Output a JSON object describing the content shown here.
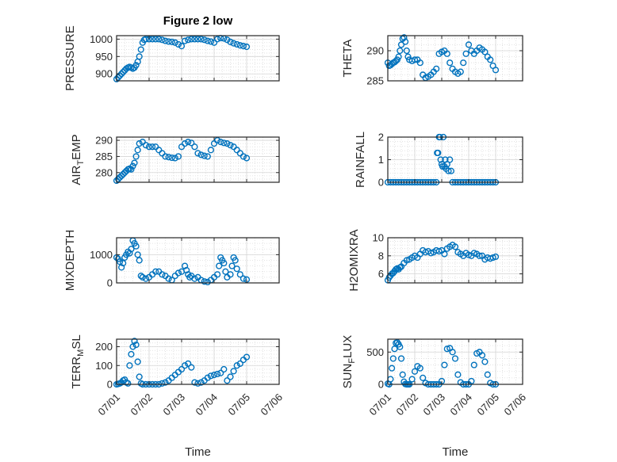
{
  "figure_title": "Figure 2 low",
  "chart_data": [
    {
      "type": "scatter",
      "ylabel": "PRESSURE",
      "xlabel": "",
      "title": "Figure 2 low",
      "ylim": [
        880,
        1010
      ],
      "yticks": [
        900,
        950,
        1000
      ],
      "xlim": [
        0,
        5
      ],
      "grid": true,
      "x": [
        0.0,
        0.05,
        0.1,
        0.15,
        0.2,
        0.25,
        0.3,
        0.35,
        0.4,
        0.45,
        0.5,
        0.55,
        0.6,
        0.65,
        0.7,
        0.75,
        0.8,
        0.85,
        0.9,
        1.0,
        1.1,
        1.2,
        1.3,
        1.4,
        1.5,
        1.6,
        1.7,
        1.8,
        1.9,
        2.0,
        2.1,
        2.2,
        2.3,
        2.4,
        2.5,
        2.6,
        2.7,
        2.8,
        2.9,
        3.0,
        3.1,
        3.2,
        3.3,
        3.4,
        3.5,
        3.6,
        3.7,
        3.8,
        3.9,
        4.0
      ],
      "y": [
        885,
        890,
        895,
        900,
        905,
        910,
        915,
        918,
        920,
        918,
        915,
        918,
        925,
        935,
        950,
        970,
        990,
        998,
        1000,
        1000,
        1000,
        1000,
        1000,
        998,
        995,
        993,
        992,
        990,
        985,
        980,
        995,
        998,
        1000,
        1000,
        1000,
        1000,
        998,
        995,
        993,
        990,
        1000,
        1003,
        1002,
        998,
        992,
        988,
        985,
        982,
        980,
        978
      ]
    },
    {
      "type": "scatter",
      "ylabel": "THETA",
      "xlabel": "",
      "ylim": [
        285,
        292.5
      ],
      "yticks": [
        285,
        290
      ],
      "xlim": [
        0,
        5
      ],
      "grid": true,
      "x": [
        0.0,
        0.05,
        0.1,
        0.15,
        0.2,
        0.25,
        0.3,
        0.35,
        0.4,
        0.45,
        0.5,
        0.55,
        0.6,
        0.65,
        0.7,
        0.75,
        0.8,
        0.9,
        1.0,
        1.1,
        1.2,
        1.3,
        1.4,
        1.5,
        1.6,
        1.7,
        1.8,
        1.9,
        2.0,
        2.1,
        2.2,
        2.3,
        2.4,
        2.5,
        2.6,
        2.7,
        2.8,
        2.9,
        3.0,
        3.1,
        3.2,
        3.3,
        3.4,
        3.5,
        3.6,
        3.7,
        3.8,
        3.9,
        4.0
      ],
      "y": [
        288,
        287.5,
        287.6,
        287.8,
        288,
        288.1,
        288.3,
        288.5,
        289,
        290,
        291,
        292,
        292.2,
        291.5,
        290,
        289,
        288.5,
        288.3,
        288.5,
        288.5,
        288,
        286,
        285.5,
        285.7,
        286,
        286.5,
        287,
        289.5,
        289.8,
        290,
        289.5,
        288,
        287,
        286.5,
        286.2,
        286.5,
        288,
        289.5,
        291,
        290,
        289.5,
        290,
        290.5,
        290.2,
        289.8,
        289,
        288.5,
        287.5,
        286.8
      ]
    },
    {
      "type": "scatter",
      "ylabel": "AIR_TEMP",
      "xlabel": "",
      "ylim": [
        277,
        291
      ],
      "yticks": [
        280,
        285,
        290
      ],
      "xlim": [
        0,
        5
      ],
      "grid": true,
      "x": [
        0.0,
        0.05,
        0.1,
        0.15,
        0.2,
        0.25,
        0.3,
        0.35,
        0.4,
        0.45,
        0.5,
        0.55,
        0.6,
        0.65,
        0.7,
        0.8,
        0.9,
        1.0,
        1.1,
        1.2,
        1.3,
        1.4,
        1.5,
        1.6,
        1.7,
        1.8,
        1.9,
        2.0,
        2.1,
        2.2,
        2.3,
        2.4,
        2.5,
        2.6,
        2.7,
        2.8,
        2.9,
        3.0,
        3.1,
        3.2,
        3.3,
        3.4,
        3.5,
        3.6,
        3.7,
        3.8,
        3.9,
        4.0
      ],
      "y": [
        277.5,
        278,
        278.5,
        279,
        279.5,
        280,
        280.5,
        281,
        281.2,
        281,
        282,
        283,
        285,
        287,
        289,
        289.5,
        288.5,
        288,
        288,
        288,
        287,
        286,
        285,
        284.8,
        284.6,
        284.5,
        285,
        288,
        289,
        289.5,
        289.2,
        288,
        286,
        285.5,
        285.2,
        285,
        287,
        289,
        290,
        289.5,
        289.2,
        289,
        288.5,
        288,
        287,
        286,
        285,
        284.5
      ]
    },
    {
      "type": "scatter",
      "ylabel": "RAINFALL",
      "xlabel": "",
      "ylim": [
        0,
        2
      ],
      "yticks": [
        0,
        1,
        2
      ],
      "xlim": [
        0,
        5
      ],
      "grid": true,
      "x": [
        0.0,
        0.1,
        0.2,
        0.3,
        0.4,
        0.5,
        0.6,
        0.7,
        0.8,
        0.9,
        1.0,
        1.1,
        1.2,
        1.3,
        1.4,
        1.5,
        1.6,
        1.7,
        1.8,
        1.83,
        1.86,
        1.9,
        1.93,
        1.96,
        2.0,
        2.03,
        2.06,
        2.1,
        2.13,
        2.16,
        2.2,
        2.25,
        2.3,
        2.35,
        2.4,
        2.5,
        2.6,
        2.7,
        2.8,
        2.9,
        3.0,
        3.1,
        3.2,
        3.3,
        3.4,
        3.5,
        3.6,
        3.7,
        3.8,
        3.9,
        4.0
      ],
      "y": [
        0,
        0,
        0,
        0,
        0,
        0,
        0,
        0,
        0,
        0,
        0,
        0,
        0,
        0,
        0,
        0,
        0,
        0,
        0,
        1.3,
        1.3,
        2.0,
        2.0,
        1.0,
        0.8,
        0.7,
        2.0,
        0.7,
        1.0,
        0.6,
        0.8,
        0.5,
        1.0,
        0.5,
        0,
        0,
        0,
        0,
        0,
        0,
        0,
        0,
        0,
        0,
        0,
        0,
        0,
        0,
        0,
        0,
        0
      ]
    },
    {
      "type": "scatter",
      "ylabel": "MIXDEPTH",
      "xlabel": "",
      "ylim": [
        0,
        1600
      ],
      "yticks": [
        0,
        1000
      ],
      "xlim": [
        0,
        5
      ],
      "grid": true,
      "x": [
        0.0,
        0.05,
        0.1,
        0.15,
        0.2,
        0.25,
        0.3,
        0.35,
        0.4,
        0.45,
        0.5,
        0.55,
        0.6,
        0.65,
        0.7,
        0.75,
        0.8,
        0.9,
        1.0,
        1.1,
        1.2,
        1.3,
        1.4,
        1.5,
        1.6,
        1.7,
        1.8,
        1.9,
        2.0,
        2.1,
        2.15,
        2.2,
        2.25,
        2.3,
        2.4,
        2.5,
        2.6,
        2.7,
        2.8,
        2.9,
        3.0,
        3.1,
        3.15,
        3.2,
        3.25,
        3.3,
        3.35,
        3.4,
        3.5,
        3.55,
        3.6,
        3.65,
        3.7,
        3.8,
        3.9,
        4.0
      ],
      "y": [
        900,
        850,
        750,
        550,
        700,
        900,
        1000,
        1100,
        1050,
        1200,
        1500,
        1400,
        1300,
        1000,
        800,
        250,
        200,
        150,
        200,
        300,
        400,
        400,
        300,
        250,
        150,
        100,
        250,
        350,
        400,
        600,
        450,
        300,
        200,
        250,
        150,
        200,
        100,
        50,
        30,
        100,
        200,
        300,
        600,
        900,
        800,
        700,
        400,
        200,
        300,
        600,
        900,
        800,
        500,
        300,
        150,
        120
      ]
    },
    {
      "type": "scatter",
      "ylabel": "H2OMIXRA",
      "xlabel": "",
      "ylim": [
        5,
        10
      ],
      "yticks": [
        6,
        8,
        10
      ],
      "xlim": [
        0,
        5
      ],
      "grid": true,
      "x": [
        0.0,
        0.05,
        0.1,
        0.15,
        0.2,
        0.25,
        0.3,
        0.35,
        0.4,
        0.45,
        0.5,
        0.6,
        0.7,
        0.8,
        0.9,
        1.0,
        1.1,
        1.2,
        1.3,
        1.4,
        1.5,
        1.6,
        1.7,
        1.8,
        1.9,
        2.0,
        2.1,
        2.2,
        2.3,
        2.4,
        2.5,
        2.6,
        2.7,
        2.8,
        2.9,
        3.0,
        3.1,
        3.2,
        3.3,
        3.4,
        3.5,
        3.6,
        3.7,
        3.8,
        3.9,
        4.0
      ],
      "y": [
        5.3,
        5.6,
        5.8,
        6.0,
        6.1,
        6.3,
        6.5,
        6.6,
        6.5,
        6.7,
        6.8,
        7.2,
        7.5,
        7.6,
        7.8,
        8.0,
        7.8,
        8.2,
        8.6,
        8.4,
        8.5,
        8.3,
        8.4,
        8.6,
        8.5,
        8.6,
        8.2,
        8.8,
        9.0,
        9.2,
        9.0,
        8.4,
        8.2,
        8.0,
        8.3,
        8.1,
        8.0,
        8.3,
        8.2,
        8.0,
        8.0,
        7.6,
        7.8,
        7.7,
        7.8,
        7.9
      ]
    },
    {
      "type": "scatter",
      "ylabel": "TERR_MSL",
      "xlabel": "Time",
      "ylim": [
        0,
        240
      ],
      "yticks": [
        0,
        100,
        200
      ],
      "xlim": [
        0,
        5
      ],
      "xticks": [
        0,
        1,
        2,
        3,
        4,
        5
      ],
      "xticklabels": [
        "07/01",
        "07/02",
        "07/03",
        "07/04",
        "07/05",
        "07/06"
      ],
      "grid": true,
      "x": [
        0.0,
        0.05,
        0.1,
        0.15,
        0.2,
        0.25,
        0.3,
        0.35,
        0.4,
        0.45,
        0.5,
        0.55,
        0.6,
        0.65,
        0.7,
        0.75,
        0.8,
        0.9,
        1.0,
        1.1,
        1.2,
        1.3,
        1.4,
        1.5,
        1.6,
        1.7,
        1.8,
        1.9,
        2.0,
        2.1,
        2.2,
        2.3,
        2.4,
        2.5,
        2.6,
        2.7,
        2.8,
        2.9,
        3.0,
        3.1,
        3.2,
        3.3,
        3.4,
        3.5,
        3.6,
        3.7,
        3.8,
        3.9,
        4.0
      ],
      "y": [
        0,
        2,
        5,
        10,
        20,
        25,
        10,
        5,
        100,
        160,
        200,
        230,
        210,
        120,
        40,
        5,
        0,
        0,
        0,
        0,
        0,
        0,
        5,
        10,
        20,
        35,
        50,
        65,
        80,
        100,
        110,
        90,
        10,
        5,
        10,
        20,
        35,
        45,
        50,
        55,
        60,
        80,
        20,
        40,
        70,
        100,
        110,
        130,
        145
      ]
    },
    {
      "type": "scatter",
      "ylabel": "SUN_FLUX",
      "xlabel": "Time",
      "ylim": [
        0,
        700
      ],
      "yticks": [
        0,
        500
      ],
      "xlim": [
        0,
        5
      ],
      "xticks": [
        0,
        1,
        2,
        3,
        4,
        5
      ],
      "xticklabels": [
        "07/01",
        "07/02",
        "07/03",
        "07/04",
        "07/05",
        "07/06"
      ],
      "grid": true,
      "x": [
        0.0,
        0.05,
        0.1,
        0.15,
        0.2,
        0.25,
        0.3,
        0.35,
        0.4,
        0.45,
        0.5,
        0.55,
        0.6,
        0.65,
        0.7,
        0.75,
        0.8,
        0.9,
        1.0,
        1.1,
        1.2,
        1.3,
        1.4,
        1.5,
        1.6,
        1.7,
        1.8,
        1.9,
        2.0,
        2.1,
        2.2,
        2.3,
        2.4,
        2.5,
        2.6,
        2.7,
        2.8,
        2.9,
        3.0,
        3.1,
        3.2,
        3.3,
        3.4,
        3.5,
        3.6,
        3.7,
        3.8,
        3.9,
        4.0
      ],
      "y": [
        10,
        0,
        80,
        250,
        400,
        550,
        640,
        650,
        620,
        580,
        400,
        150,
        40,
        5,
        0,
        0,
        0,
        80,
        200,
        280,
        250,
        100,
        20,
        0,
        0,
        0,
        0,
        0,
        50,
        300,
        550,
        560,
        500,
        400,
        150,
        30,
        0,
        0,
        0,
        50,
        300,
        480,
        500,
        450,
        350,
        150,
        20,
        0,
        0
      ]
    }
  ]
}
